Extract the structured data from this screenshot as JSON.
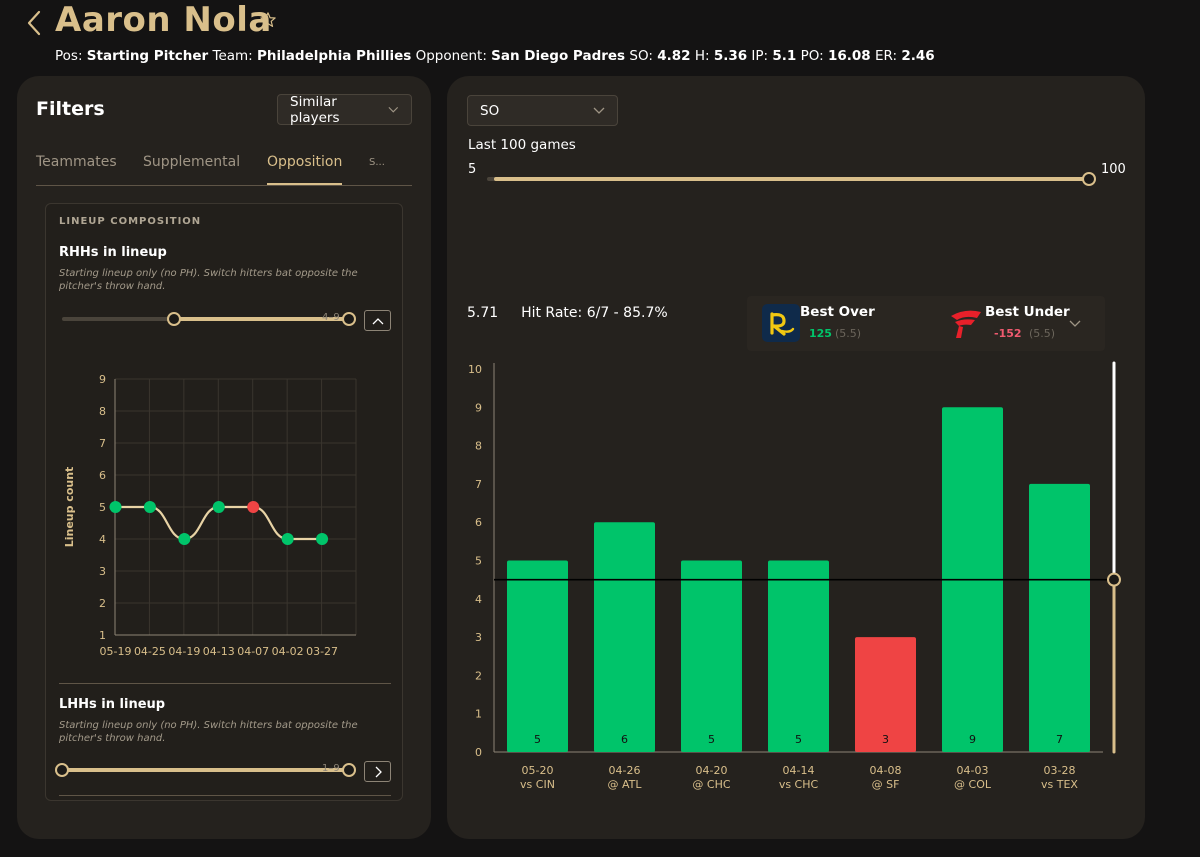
{
  "header": {
    "player_name": "Aaron Nola",
    "stats": [
      {
        "label": "Pos:",
        "value": "Starting Pitcher"
      },
      {
        "label": "Team:",
        "value": "Philadelphia Phillies"
      },
      {
        "label": "Opponent:",
        "value": "San Diego Padres"
      },
      {
        "label": "SO:",
        "value": "4.82"
      },
      {
        "label": "H:",
        "value": "5.36"
      },
      {
        "label": "IP:",
        "value": "5.1"
      },
      {
        "label": "PO:",
        "value": "16.08"
      },
      {
        "label": "ER:",
        "value": "2.46"
      }
    ]
  },
  "filters": {
    "title": "Filters",
    "dropdown_value": "Similar players",
    "tabs": [
      "Teammates",
      "Supplemental",
      "Opposition",
      "S..."
    ],
    "active_tab": 2,
    "lineup": {
      "section_label": "LINEUP COMPOSITION",
      "rhh": {
        "title": "RHHs in lineup",
        "desc": "Starting lineup only (no PH). Switch hitters bat opposite the pitcher's throw hand.",
        "range_label": "4–9",
        "range_low_fraction": 0.375,
        "range_high_fraction": 1.0
      },
      "lhh": {
        "title": "LHHs in lineup",
        "desc": "Starting lineup only (no PH). Switch hitters bat opposite the pitcher's throw hand.",
        "range_label": "1–9",
        "range_low_fraction": 0.0,
        "range_high_fraction": 1.0
      }
    }
  },
  "main": {
    "stat_dropdown": "SO",
    "games_label": "Last 100 games",
    "games_slider": {
      "min_label": "5",
      "max_label": "100",
      "value_fraction": 1.0
    },
    "avg": "5.71",
    "hit_rate": "Hit Rate: 6/7 - 85.7%",
    "best_over": {
      "title": "Best Over",
      "odds": "125",
      "line": "(5.5)"
    },
    "best_under": {
      "title": "Best Under",
      "odds": "-152",
      "line": "(5.5)"
    },
    "line_value": 4.5
  },
  "colors": {
    "gold": "#d9bf8b",
    "green": "#00c46a",
    "red": "#ef4444",
    "panel": "#25221e",
    "background": "#141313"
  },
  "chart_data": [
    {
      "type": "line",
      "title": "",
      "ylabel": "Lineup count",
      "xlabel": "",
      "categories": [
        "05-19",
        "04-25",
        "04-19",
        "04-13",
        "04-07",
        "04-02",
        "03-27"
      ],
      "values": [
        5,
        5,
        4,
        5,
        5,
        4,
        4
      ],
      "point_colors": [
        "#00c46a",
        "#00c46a",
        "#00c46a",
        "#00c46a",
        "#ef4444",
        "#00c46a",
        "#00c46a"
      ],
      "ylim": [
        1,
        9
      ],
      "yticks": [
        1,
        2,
        3,
        4,
        5,
        6,
        7,
        8,
        9
      ],
      "grid": true
    },
    {
      "type": "bar",
      "title": "",
      "xlabel": "",
      "ylabel": "",
      "categories": [
        "05-20",
        "04-26",
        "04-20",
        "04-14",
        "04-08",
        "04-03",
        "03-28"
      ],
      "opponents": [
        "vs CIN",
        "@ ATL",
        "@ CHC",
        "vs CHC",
        "@ SF",
        "@ COL",
        "vs TEX"
      ],
      "values": [
        5,
        6,
        5,
        5,
        3,
        9,
        7
      ],
      "bar_colors": [
        "#00c46a",
        "#00c46a",
        "#00c46a",
        "#00c46a",
        "#ef4444",
        "#00c46a",
        "#00c46a"
      ],
      "ylim": [
        0,
        10
      ],
      "yticks": [
        0,
        1,
        2,
        3,
        4,
        5,
        6,
        7,
        8,
        9,
        10
      ],
      "threshold": 4.5,
      "grid": false
    }
  ]
}
